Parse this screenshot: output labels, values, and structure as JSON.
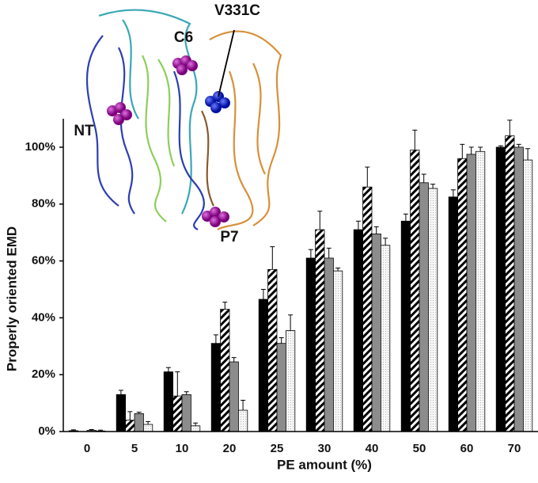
{
  "chart_data": {
    "type": "bar",
    "x_label": "PE amount (%)",
    "y_label": "Properly oriented EMD",
    "categories": [
      "0",
      "5",
      "10",
      "20",
      "25",
      "30",
      "40",
      "50",
      "60",
      "70"
    ],
    "series": [
      {
        "color": "#000000",
        "pattern": "solid",
        "values": [
          0.3,
          13,
          21,
          31,
          46.5,
          61,
          71,
          74,
          82.5,
          100
        ],
        "errors": [
          0.3,
          1.5,
          1.5,
          3,
          3.5,
          3,
          3,
          2.5,
          2.5,
          0.5
        ]
      },
      {
        "color": "#000000",
        "pattern": "hatch",
        "values": [
          0,
          4,
          12.5,
          43,
          57,
          71,
          86,
          99,
          96,
          104
        ],
        "errors": [
          0,
          3,
          8.5,
          2.5,
          8,
          6.5,
          7,
          7,
          5,
          5.5
        ]
      },
      {
        "color": "#8c8c8c",
        "pattern": "solid",
        "values": [
          0.4,
          6.3,
          13,
          24.5,
          31,
          61,
          69.5,
          87.5,
          97.5,
          100
        ],
        "errors": [
          0.3,
          0.5,
          1,
          1.5,
          2,
          3.5,
          2.5,
          3,
          2.5,
          1
        ]
      },
      {
        "color": "#f4f4f4",
        "pattern": "dots",
        "values": [
          0.2,
          2.5,
          2,
          7.5,
          35.5,
          56.5,
          65.5,
          85.5,
          98.5,
          95.5
        ],
        "errors": [
          0.3,
          1,
          1,
          3.5,
          5.5,
          1,
          2.5,
          1.5,
          1.5,
          4
        ]
      }
    ],
    "ylim": [
      0,
      110
    ],
    "yticks": [
      {
        "value": 0,
        "label": "0%"
      },
      {
        "value": 20,
        "label": "20%"
      },
      {
        "value": 40,
        "label": "40%"
      },
      {
        "value": 60,
        "label": "60%"
      },
      {
        "value": 80,
        "label": "80%"
      },
      {
        "value": 100,
        "label": "100%"
      }
    ],
    "annotations": [
      "V331C",
      "C6",
      "NT",
      "P7"
    ]
  }
}
